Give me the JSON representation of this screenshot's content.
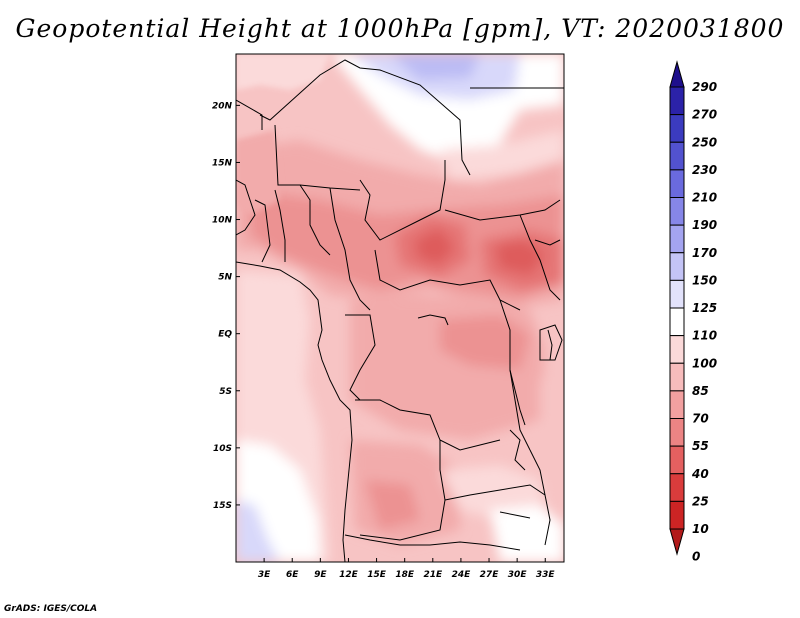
{
  "title": "Geopotential Height at 1000hPa [gpm], VT: 2020031800",
  "footer": "GrADS: IGES/COLA",
  "map": {
    "variable": "Geopotential Height",
    "level": "1000hPa",
    "units": "gpm",
    "valid_time": "2020031800",
    "lon_range": [
      0,
      35
    ],
    "lat_range": [
      -20,
      24.5
    ],
    "lon_ticks": [
      {
        "lon": 3,
        "label": "3E"
      },
      {
        "lon": 6,
        "label": "6E"
      },
      {
        "lon": 9,
        "label": "9E"
      },
      {
        "lon": 12,
        "label": "12E"
      },
      {
        "lon": 15,
        "label": "15E"
      },
      {
        "lon": 18,
        "label": "18E"
      },
      {
        "lon": 21,
        "label": "21E"
      },
      {
        "lon": 24,
        "label": "24E"
      },
      {
        "lon": 27,
        "label": "27E"
      },
      {
        "lon": 30,
        "label": "30E"
      },
      {
        "lon": 33,
        "label": "33E"
      }
    ],
    "lat_ticks": [
      {
        "lat": 20,
        "label": "20N"
      },
      {
        "lat": 15,
        "label": "15N"
      },
      {
        "lat": 10,
        "label": "10N"
      },
      {
        "lat": 5,
        "label": "5N"
      },
      {
        "lat": 0,
        "label": "EQ"
      },
      {
        "lat": -5,
        "label": "5S"
      },
      {
        "lat": -10,
        "label": "10S"
      },
      {
        "lat": -15,
        "label": "15S"
      }
    ]
  },
  "colorbar": {
    "levels": [
      "290",
      "270",
      "250",
      "230",
      "210",
      "190",
      "170",
      "150",
      "125",
      "110",
      "100",
      "85",
      "70",
      "55",
      "40",
      "25",
      "10",
      "0"
    ],
    "colors": [
      "#1e0f8c",
      "#2b22a8",
      "#3b3bbf",
      "#5252cf",
      "#6a6ade",
      "#8686e8",
      "#a4a4f0",
      "#c4c4f6",
      "#e2e2fb",
      "#ffffff",
      "#fbd9d9",
      "#f7bcbc",
      "#f2a0a0",
      "#ec8484",
      "#e46060",
      "#da3c3c",
      "#cc2424",
      "#b21a1a"
    ]
  },
  "field_colors": {
    "blue_light": "#d8d8fa",
    "blue_mid": "#bcbcf4",
    "white": "#ffffff",
    "pink1": "#fbdada",
    "pink2": "#f7c4c4",
    "pink3": "#f2abab",
    "pink4": "#ec9292",
    "red1": "#e57474",
    "red2": "#de5c5c"
  }
}
